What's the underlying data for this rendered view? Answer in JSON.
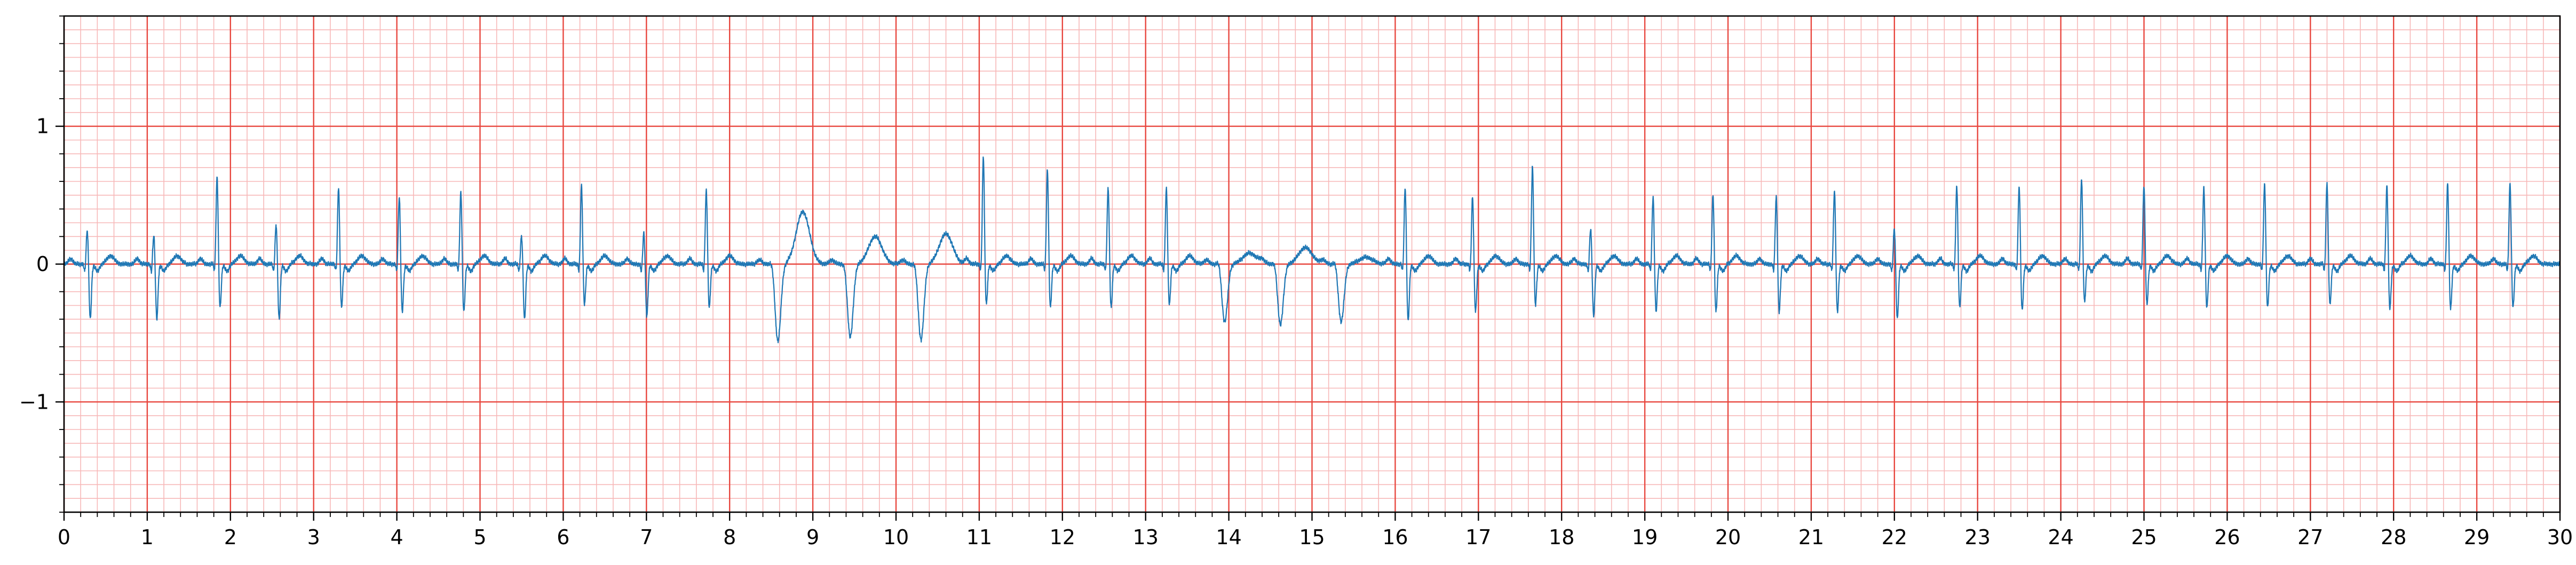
{
  "chart_data": {
    "type": "line",
    "title": "",
    "xlabel": "",
    "ylabel": "",
    "xlim": [
      0,
      30
    ],
    "ylim": [
      -1.8,
      1.8
    ],
    "x_ticks": [
      "0",
      "1",
      "2",
      "3",
      "4",
      "5",
      "6",
      "7",
      "8",
      "9",
      "10",
      "11",
      "12",
      "13",
      "14",
      "15",
      "16",
      "17",
      "18",
      "19",
      "20",
      "21",
      "22",
      "23",
      "24",
      "25",
      "26",
      "27",
      "28",
      "29",
      "30"
    ],
    "y_ticks": [
      {
        "value": 1,
        "label": "1"
      },
      {
        "value": 0,
        "label": "0"
      },
      {
        "value": -1,
        "label": "−1"
      }
    ],
    "grid": true,
    "grid_major_color": "#e8473f",
    "grid_minor_color": "#f7b8b8",
    "line_color": "#1f77b4",
    "sampling_rate_hz": 100,
    "series": [
      {
        "beats": [
          {
            "t": 0.28,
            "r": 0.26,
            "s": -0.4,
            "k": "n"
          },
          {
            "t": 1.08,
            "r": 0.22,
            "s": -0.4,
            "k": "n"
          },
          {
            "t": 1.84,
            "r": 0.65,
            "s": -0.32,
            "k": "v"
          },
          {
            "t": 2.55,
            "r": 0.3,
            "s": -0.4,
            "k": "n"
          },
          {
            "t": 3.3,
            "r": 0.57,
            "s": -0.32,
            "k": "v"
          },
          {
            "t": 4.03,
            "r": 0.5,
            "s": -0.35,
            "k": "n"
          },
          {
            "t": 4.77,
            "r": 0.54,
            "s": -0.35,
            "k": "v"
          },
          {
            "t": 5.5,
            "r": 0.22,
            "s": -0.4,
            "k": "n"
          },
          {
            "t": 6.22,
            "r": 0.58,
            "s": -0.3,
            "k": "v"
          },
          {
            "t": 6.97,
            "r": 0.24,
            "s": -0.38,
            "k": "n"
          },
          {
            "t": 7.72,
            "r": 0.55,
            "s": -0.32,
            "k": "v"
          },
          {
            "t": 8.58,
            "r": 0.05,
            "s": -0.56,
            "k": "w",
            "tw": 0.38
          },
          {
            "t": 9.45,
            "r": 0.04,
            "s": -0.53,
            "k": "w",
            "tw": 0.2
          },
          {
            "t": 10.3,
            "r": 0.04,
            "s": -0.55,
            "k": "w",
            "tw": 0.22
          },
          {
            "t": 11.05,
            "r": 0.79,
            "s": -0.3,
            "k": "v"
          },
          {
            "t": 11.82,
            "r": 0.7,
            "s": -0.32,
            "k": "v"
          },
          {
            "t": 12.55,
            "r": 0.57,
            "s": -0.32,
            "k": "v"
          },
          {
            "t": 13.25,
            "r": 0.56,
            "s": -0.3,
            "k": "v"
          },
          {
            "t": 13.95,
            "r": 0.05,
            "s": -0.42,
            "k": "w",
            "tw": 0.08
          },
          {
            "t": 14.62,
            "r": 0.05,
            "s": -0.44,
            "k": "w",
            "tw": 0.12
          },
          {
            "t": 15.35,
            "r": 0.05,
            "s": -0.42,
            "k": "w",
            "tw": 0.05
          },
          {
            "t": 16.12,
            "r": 0.57,
            "s": -0.42,
            "k": "v"
          },
          {
            "t": 16.93,
            "r": 0.5,
            "s": -0.35,
            "k": "v"
          },
          {
            "t": 17.65,
            "r": 0.72,
            "s": -0.3,
            "k": "v"
          },
          {
            "t": 18.35,
            "r": 0.27,
            "s": -0.38,
            "k": "n"
          },
          {
            "t": 19.1,
            "r": 0.5,
            "s": -0.35,
            "k": "v"
          },
          {
            "t": 19.82,
            "r": 0.52,
            "s": -0.35,
            "k": "v"
          },
          {
            "t": 20.58,
            "r": 0.5,
            "s": -0.35,
            "k": "v"
          },
          {
            "t": 21.28,
            "r": 0.55,
            "s": -0.35,
            "k": "v"
          },
          {
            "t": 22.0,
            "r": 0.27,
            "s": -0.4,
            "k": "n"
          },
          {
            "t": 22.75,
            "r": 0.58,
            "s": -0.32,
            "k": "v"
          },
          {
            "t": 23.5,
            "r": 0.58,
            "s": -0.34,
            "k": "v"
          },
          {
            "t": 24.25,
            "r": 0.63,
            "s": -0.28,
            "k": "v"
          },
          {
            "t": 25.0,
            "r": 0.58,
            "s": -0.3,
            "k": "v"
          },
          {
            "t": 25.72,
            "r": 0.57,
            "s": -0.32,
            "k": "v"
          },
          {
            "t": 26.45,
            "r": 0.6,
            "s": -0.32,
            "k": "v"
          },
          {
            "t": 27.2,
            "r": 0.6,
            "s": -0.3,
            "k": "v"
          },
          {
            "t": 27.92,
            "r": 0.58,
            "s": -0.33,
            "k": "v"
          },
          {
            "t": 28.65,
            "r": 0.6,
            "s": -0.33,
            "k": "v"
          },
          {
            "t": 29.4,
            "r": 0.6,
            "s": -0.32,
            "k": "v"
          }
        ]
      }
    ]
  }
}
